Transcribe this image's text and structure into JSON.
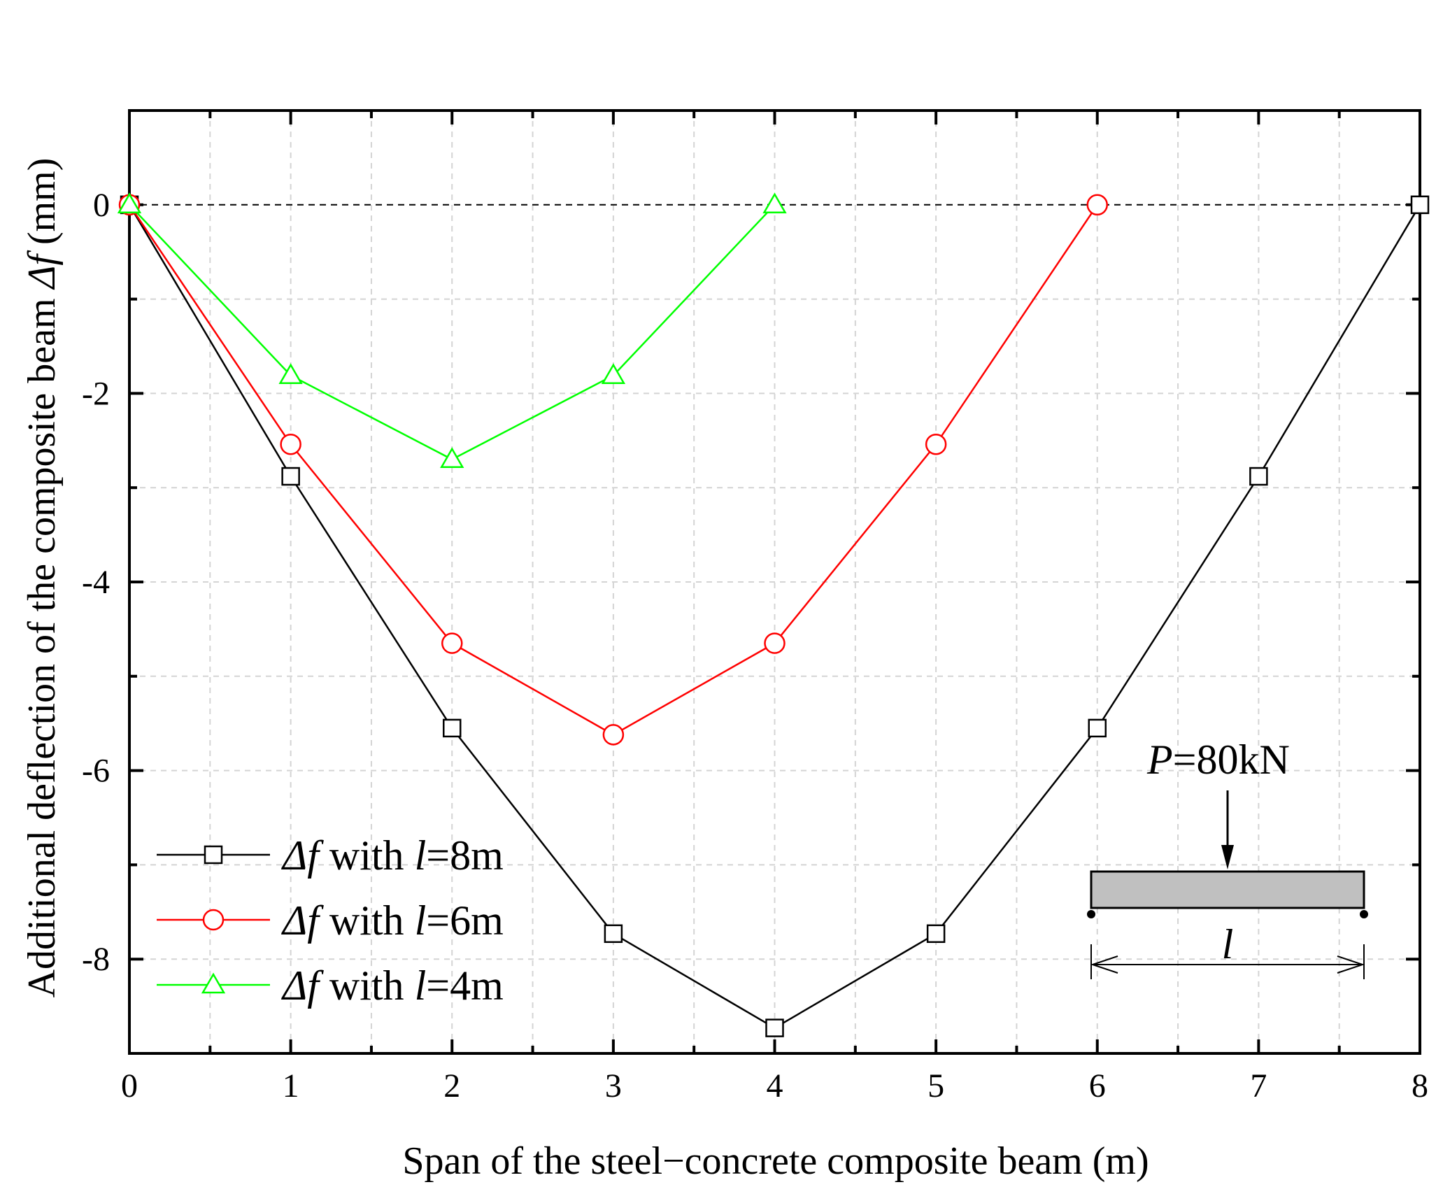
{
  "chart_data": {
    "type": "line",
    "xlabel": "Span of the steel−concrete composite beam (m)",
    "ylabel": {
      "prefix": "Additional deflection of the composite beam ",
      "symbol": "Δf",
      "unit": " (mm)"
    },
    "xlim": [
      0,
      8
    ],
    "ylim": [
      -9,
      1
    ],
    "x_ticks": [
      0,
      1,
      2,
      3,
      4,
      5,
      6,
      7,
      8
    ],
    "y_ticks": [
      0,
      -2,
      -4,
      -6,
      -8
    ],
    "x_tick_labels": [
      "0",
      "1",
      "2",
      "3",
      "4",
      "5",
      "6",
      "7",
      "8"
    ],
    "y_tick_labels": [
      "0",
      "-2",
      "-4",
      "-6",
      "-8"
    ],
    "grid": "dashed",
    "zero_reference_line": true,
    "legend_position": "bottom-left",
    "series": [
      {
        "key": "l8",
        "legend_symbol": "Δf",
        "legend_middle": " with ",
        "legend_var": "l",
        "legend_value": "=8m",
        "color": "#000000",
        "marker": "square",
        "x": [
          0,
          1,
          2,
          3,
          4,
          5,
          6,
          7,
          8
        ],
        "y": [
          0,
          -2.88,
          -5.55,
          -7.73,
          -8.73,
          -7.73,
          -5.55,
          -2.88,
          0
        ]
      },
      {
        "key": "l6",
        "legend_symbol": "Δf",
        "legend_middle": " with ",
        "legend_var": "l",
        "legend_value": "=6m",
        "color": "#ff0000",
        "marker": "circle",
        "x": [
          0,
          1,
          2,
          3,
          4,
          5,
          6
        ],
        "y": [
          0,
          -2.54,
          -4.65,
          -5.62,
          -4.65,
          -2.54,
          0
        ]
      },
      {
        "key": "l4",
        "legend_symbol": "Δf",
        "legend_middle": " with ",
        "legend_var": "l",
        "legend_value": "=4m",
        "color": "#00ff00",
        "marker": "triangle",
        "x": [
          0,
          1,
          2,
          3,
          4
        ],
        "y": [
          0,
          -1.81,
          -2.7,
          -1.81,
          0
        ]
      }
    ],
    "inset": {
      "load_symbol": "P",
      "load_value": "=80kN",
      "span_symbol": "l",
      "beam_color": "#c0c0c0"
    }
  }
}
